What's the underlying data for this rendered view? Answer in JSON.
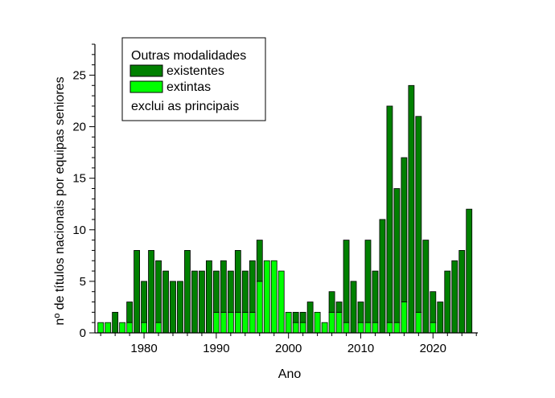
{
  "chart_data": {
    "type": "bar",
    "stacked": true,
    "xlabel": "Ano",
    "ylabel": "nº de títulos nacionais por equipas seniores",
    "xlim": [
      1973.2,
      2026.2
    ],
    "ylim": [
      0,
      28
    ],
    "xticks": [
      1980,
      1990,
      2000,
      2010,
      2020
    ],
    "yticks": [
      0,
      5,
      10,
      15,
      20,
      25
    ],
    "legend": {
      "position": "top-left",
      "title": "Outras modalidades",
      "note": "exclui as principais"
    },
    "colors": {
      "existentes": "#008000",
      "extintas": "#00ff00",
      "edge": "#000000"
    },
    "x": [
      1974,
      1975,
      1976,
      1977,
      1978,
      1979,
      1980,
      1981,
      1982,
      1983,
      1984,
      1985,
      1986,
      1987,
      1988,
      1989,
      1990,
      1991,
      1992,
      1993,
      1994,
      1995,
      1996,
      1997,
      1998,
      1999,
      2000,
      2001,
      2002,
      2003,
      2004,
      2005,
      2006,
      2007,
      2008,
      2009,
      2010,
      2011,
      2012,
      2013,
      2014,
      2015,
      2016,
      2017,
      2018,
      2019,
      2020,
      2021,
      2022,
      2023,
      2024,
      2025
    ],
    "series": [
      {
        "name": "extintas",
        "key": "extintas",
        "values": [
          1,
          1,
          0,
          1,
          1,
          0,
          1,
          0,
          1,
          0,
          0,
          0,
          0,
          0,
          0,
          0,
          2,
          2,
          2,
          2,
          2,
          2,
          5,
          7,
          7,
          6,
          2,
          1,
          1,
          0,
          2,
          1,
          2,
          2,
          1,
          0,
          1,
          1,
          1,
          0,
          1,
          1,
          3,
          0,
          2,
          0,
          1,
          0,
          0,
          0,
          0,
          0
        ]
      },
      {
        "name": "existentes",
        "key": "existentes",
        "values": [
          0,
          0,
          2,
          0,
          2,
          8,
          4,
          8,
          6,
          6,
          5,
          5,
          8,
          6,
          6,
          7,
          4,
          5,
          4,
          6,
          4,
          5,
          4,
          0,
          0,
          0,
          0,
          1,
          1,
          3,
          0,
          0,
          2,
          1,
          8,
          5,
          2,
          8,
          5,
          11,
          21,
          13,
          14,
          24,
          19,
          9,
          3,
          3,
          6,
          7,
          8,
          12
        ]
      }
    ]
  }
}
